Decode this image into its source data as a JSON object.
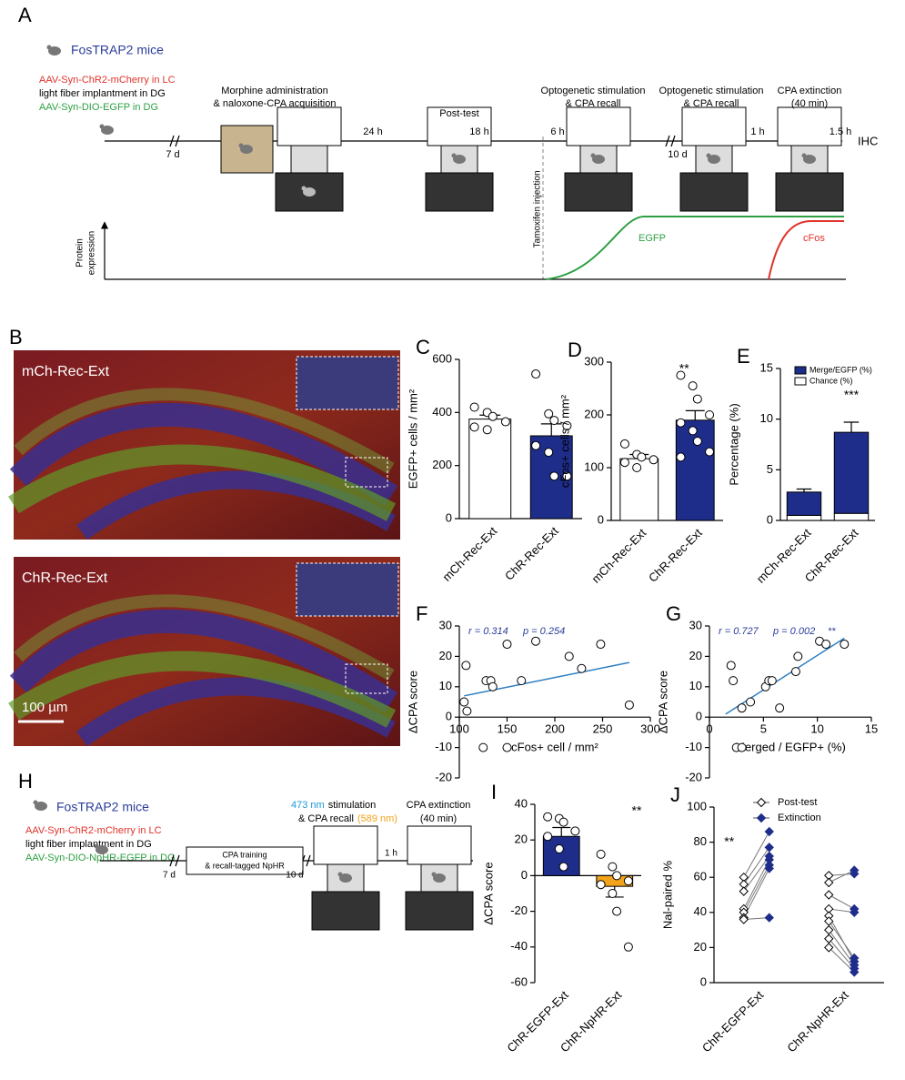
{
  "panel_A": {
    "label": "A",
    "mice": "FosTRAP2 mice",
    "virus": [
      "AAV-Syn-ChR2-mCherry in LC",
      "light fiber implantment in DG",
      "AAV-Syn-DIO-EGFP in DG"
    ],
    "steps": [
      [
        "Morphine administration",
        "& naloxone-CPA acquisition"
      ],
      [
        "Post-test"
      ],
      [
        "Optogenetic stimulation",
        "& CPA recall"
      ],
      [
        "Optogenetic stimulation",
        "& CPA recall"
      ],
      [
        "CPA extinction",
        "(40 min)"
      ]
    ],
    "intervals": [
      "7 d",
      "24 h",
      "18 h",
      "6 h",
      "10 d",
      "1 h",
      "1.5 h"
    ],
    "end": "IHC",
    "tamoxifen": "Tamoxifen injection",
    "protein_axis": [
      "Protein",
      "expression"
    ],
    "curves": [
      "EGFP",
      "cFos"
    ]
  },
  "panel_B": {
    "label": "B",
    "images": [
      "mCh-Rec-Ext",
      "ChR-Rec-Ext"
    ],
    "scale_bar": "100 µm"
  },
  "panel_H": {
    "label": "H",
    "mice": "FosTRAP2 mice",
    "virus": [
      "AAV-Syn-ChR2-mCherry in LC",
      "light fiber implantment in DG",
      "AAV-Syn-DIO-NpHR-EGFP in DG"
    ],
    "training": [
      "CPA training",
      "& recall-tagged NpHR"
    ],
    "stim": {
      "wavelength": "473 nm",
      "text": "stimulation",
      "recall": "& CPA recall",
      "recall_wavelength": "(589 nm)"
    },
    "extinction": [
      "CPA extinction",
      "(40 min)"
    ],
    "intervals": [
      "7 d",
      "10 d",
      "1 h"
    ]
  },
  "chart_data": [
    {
      "panel": "C",
      "type": "bar",
      "ylabel": "EGFP+ cells / mm²",
      "categories": [
        "mCh-Rec-Ext",
        "ChR-Rec-Ext"
      ],
      "colors": [
        "#ffffff",
        "#1f2d8a"
      ],
      "values": [
        375,
        312
      ],
      "errors": [
        15,
        45
      ],
      "points": [
        [
          420,
          400,
          385,
          365,
          345,
          335
        ],
        [
          545,
          395,
          370,
          350,
          275,
          250,
          160,
          160
        ]
      ],
      "ylim": [
        0,
        600
      ],
      "yticks": [
        0,
        200,
        400,
        600
      ]
    },
    {
      "panel": "D",
      "type": "bar",
      "ylabel": "cFos+ cells / mm²",
      "categories": [
        "mCh-Rec-Ext",
        "ChR-Rec-Ext"
      ],
      "colors": [
        "#ffffff",
        "#1f2d8a"
      ],
      "values": [
        117,
        190
      ],
      "errors": [
        8,
        18
      ],
      "points": [
        [
          145,
          125,
          120,
          115,
          110,
          100
        ],
        [
          275,
          255,
          230,
          200,
          185,
          170,
          150,
          130,
          120
        ]
      ],
      "ylim": [
        0,
        300
      ],
      "yticks": [
        0,
        100,
        200,
        300
      ],
      "annotation": "**"
    },
    {
      "panel": "E",
      "type": "stacked_bar",
      "ylabel": "Percentage (%)",
      "categories": [
        "mCh-Rec-Ext",
        "ChR-Rec-Ext"
      ],
      "series": [
        {
          "name": "Chance (%)",
          "color": "#ffffff",
          "values": [
            0.5,
            0.7
          ]
        },
        {
          "name": "Merge/EGFP (%)",
          "color": "#1f2d8a",
          "values": [
            2.3,
            8.0
          ],
          "errors": [
            0.3,
            1.0
          ]
        }
      ],
      "ylim": [
        0,
        15
      ],
      "yticks": [
        0,
        5,
        10,
        15
      ],
      "annotation": "***"
    },
    {
      "panel": "F",
      "type": "scatter",
      "xlabel": "cFos+ cell / mm²",
      "ylabel": "ΔCPA score",
      "x": [
        105,
        107,
        108,
        125,
        128,
        133,
        135,
        150,
        150,
        165,
        180,
        215,
        228,
        248,
        278
      ],
      "y": [
        5,
        17,
        2,
        -10,
        12,
        12,
        10,
        24,
        -10,
        12,
        25,
        20,
        16,
        24,
        4
      ],
      "fit": {
        "x": [
          105,
          278
        ],
        "y": [
          7,
          18
        ]
      },
      "color": "#2e7fc2",
      "xlim": [
        100,
        300
      ],
      "xticks": [
        100,
        150,
        200,
        250,
        300
      ],
      "ylim": [
        -20,
        30
      ],
      "yticks": [
        -20,
        -10,
        0,
        10,
        20,
        30
      ],
      "annotations": [
        "r = 0.314",
        "p = 0.254"
      ]
    },
    {
      "panel": "G",
      "type": "scatter",
      "xlabel": "Merged / EGFP+ (%)",
      "ylabel": "ΔCPA score",
      "x": [
        2,
        2.2,
        2.5,
        3,
        3,
        3.8,
        5.2,
        5.5,
        5.8,
        6.5,
        8,
        8.2,
        10.2,
        10.8,
        12.5
      ],
      "y": [
        17,
        12,
        -10,
        -10,
        3,
        5,
        10,
        12,
        12,
        3,
        15,
        20,
        25,
        24,
        24
      ],
      "fit": {
        "x": [
          1.5,
          12.5
        ],
        "y": [
          1,
          26
        ]
      },
      "color": "#2e7fc2",
      "xlim": [
        0,
        15
      ],
      "xticks": [
        0,
        5,
        10,
        15
      ],
      "ylim": [
        -20,
        30
      ],
      "yticks": [
        -20,
        -10,
        0,
        10,
        20,
        30
      ],
      "annotations": [
        "r = 0.727",
        "p = 0.002",
        "**"
      ]
    },
    {
      "panel": "I",
      "type": "bar",
      "ylabel": "ΔCPA score",
      "categories": [
        "ChR-EGFP-Ext",
        "ChR-NpHR-Ext"
      ],
      "colors": [
        "#1f2d8a",
        "#f2a21b"
      ],
      "values": [
        22,
        -6
      ],
      "errors": [
        5,
        6
      ],
      "points": [
        [
          33,
          32,
          30,
          25,
          22,
          15,
          5
        ],
        [
          12,
          5,
          0,
          -3,
          -5,
          -10,
          -20,
          -40
        ]
      ],
      "ylim": [
        -60,
        40
      ],
      "yticks": [
        -60,
        -40,
        -20,
        0,
        20,
        40
      ],
      "annotation": "**"
    },
    {
      "panel": "J",
      "type": "paired",
      "ylabel": "Nal-paired %",
      "categories": [
        "ChR-EGFP-Ext",
        "ChR-NpHR-Ext"
      ],
      "series": [
        {
          "name": "Post-test",
          "color": "#ffffff",
          "values": [
            [
              60,
              56,
              52,
              42,
              40,
              37,
              36
            ],
            [
              61,
              57,
              50,
              42,
              38,
              35,
              30,
              25,
              20
            ]
          ]
        },
        {
          "name": "Extinction",
          "color": "#1f2d8a",
          "values": [
            [
              86,
              77,
              72,
              70,
              67,
              65,
              37
            ],
            [
              62,
              64,
              42,
              40,
              12,
              14,
              10,
              8,
              6
            ]
          ]
        }
      ],
      "ylim": [
        0,
        100
      ],
      "yticks": [
        0,
        20,
        40,
        60,
        80,
        100
      ],
      "annotation": "**"
    }
  ]
}
